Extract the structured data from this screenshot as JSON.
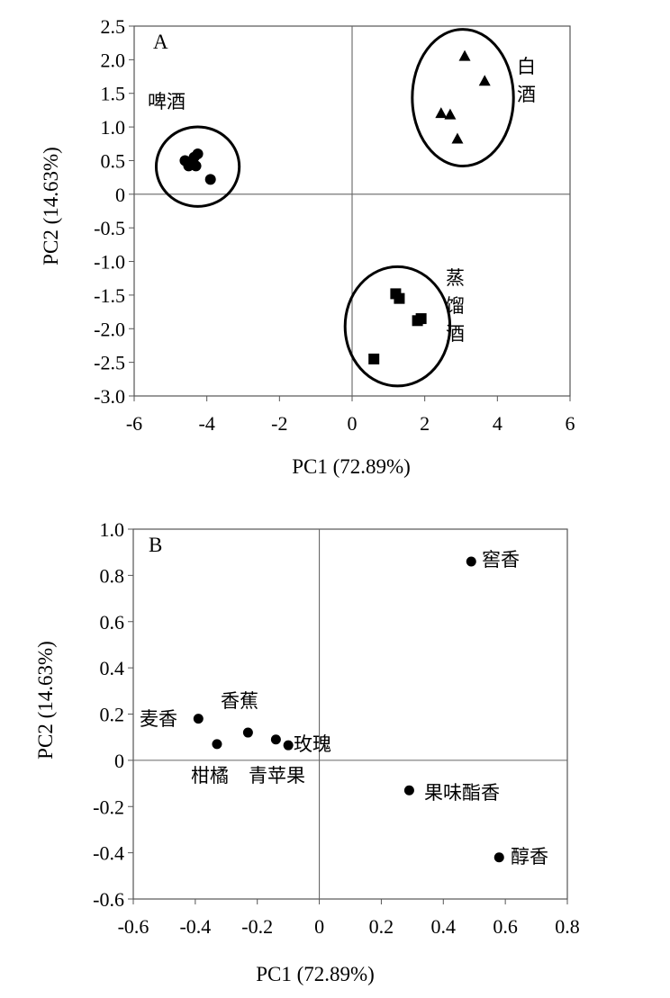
{
  "chart_data": [
    {
      "panel": "A",
      "type": "scatter",
      "xlabel": "PC1 (72.89%)",
      "ylabel": "PC2 (14.63%)",
      "xlim": [
        -6,
        6
      ],
      "ylim": [
        -3.0,
        2.5
      ],
      "x_ticks": [
        -6,
        -4,
        -2,
        0,
        2,
        4,
        6
      ],
      "x_tick_labels": [
        "-6",
        "-4",
        "-2",
        "0",
        "2",
        "4",
        "6"
      ],
      "y_ticks": [
        2.5,
        2.0,
        1.5,
        1.0,
        0.5,
        0,
        -0.5,
        -1.0,
        -1.5,
        -2.0,
        -2.5,
        -3.0
      ],
      "y_tick_labels": [
        "2.5",
        "2.0",
        "1.5",
        "1.0",
        "0.5",
        "0",
        "-0.5",
        "-1.0",
        "-1.5",
        "-2.0",
        "-2.5",
        "-3.0"
      ],
      "grid": false,
      "series": [
        {
          "name": "啤酒",
          "label_text": "啤酒",
          "marker": "circle",
          "x": [
            -4.6,
            -4.35,
            -4.25,
            -4.5,
            -4.3,
            -3.9
          ],
          "y": [
            0.5,
            0.55,
            0.6,
            0.42,
            0.42,
            0.22
          ]
        },
        {
          "name": "白酒",
          "label_text": "白酒",
          "marker": "triangle",
          "x": [
            3.1,
            3.65,
            2.45,
            2.7,
            2.9
          ],
          "y": [
            2.05,
            1.68,
            1.2,
            1.18,
            0.82
          ]
        },
        {
          "name": "蒸馏酒",
          "label_text": "蒸馏酒",
          "marker": "square",
          "x": [
            1.2,
            1.3,
            1.8,
            1.9,
            0.6
          ],
          "y": [
            -1.48,
            -1.55,
            -1.88,
            -1.85,
            -2.45
          ]
        }
      ]
    },
    {
      "panel": "B",
      "type": "scatter",
      "xlabel": "PC1 (72.89%)",
      "ylabel": "PC2 (14.63%)",
      "xlim": [
        -0.6,
        0.8
      ],
      "ylim": [
        -0.6,
        1.0
      ],
      "x_ticks": [
        -0.6,
        -0.4,
        -0.2,
        0,
        0.2,
        0.4,
        0.6,
        0.8
      ],
      "x_tick_labels": [
        "-0.6",
        "-0.4",
        "-0.2",
        "0",
        "0.2",
        "0.4",
        "0.6",
        "0.8"
      ],
      "y_ticks": [
        1.0,
        0.8,
        0.6,
        0.4,
        0.2,
        0,
        -0.2,
        -0.4,
        -0.6
      ],
      "y_tick_labels": [
        "1.0",
        "0.8",
        "0.6",
        "0.4",
        "0.2",
        "0",
        "-0.2",
        "-0.4",
        "-0.6"
      ],
      "grid": false,
      "points": [
        {
          "label": "窖香",
          "x": 0.49,
          "y": 0.86
        },
        {
          "label": "麦香",
          "x": -0.39,
          "y": 0.18
        },
        {
          "label": "香蕉",
          "x": -0.23,
          "y": 0.12
        },
        {
          "label": "柑橘",
          "x": -0.33,
          "y": 0.07
        },
        {
          "label": "青苹果",
          "x": -0.14,
          "y": 0.09
        },
        {
          "label": "玫瑰",
          "x": -0.1,
          "y": 0.065
        },
        {
          "label": "果味酯香",
          "x": 0.29,
          "y": -0.13
        },
        {
          "label": "醇香",
          "x": 0.58,
          "y": -0.42
        }
      ]
    }
  ]
}
